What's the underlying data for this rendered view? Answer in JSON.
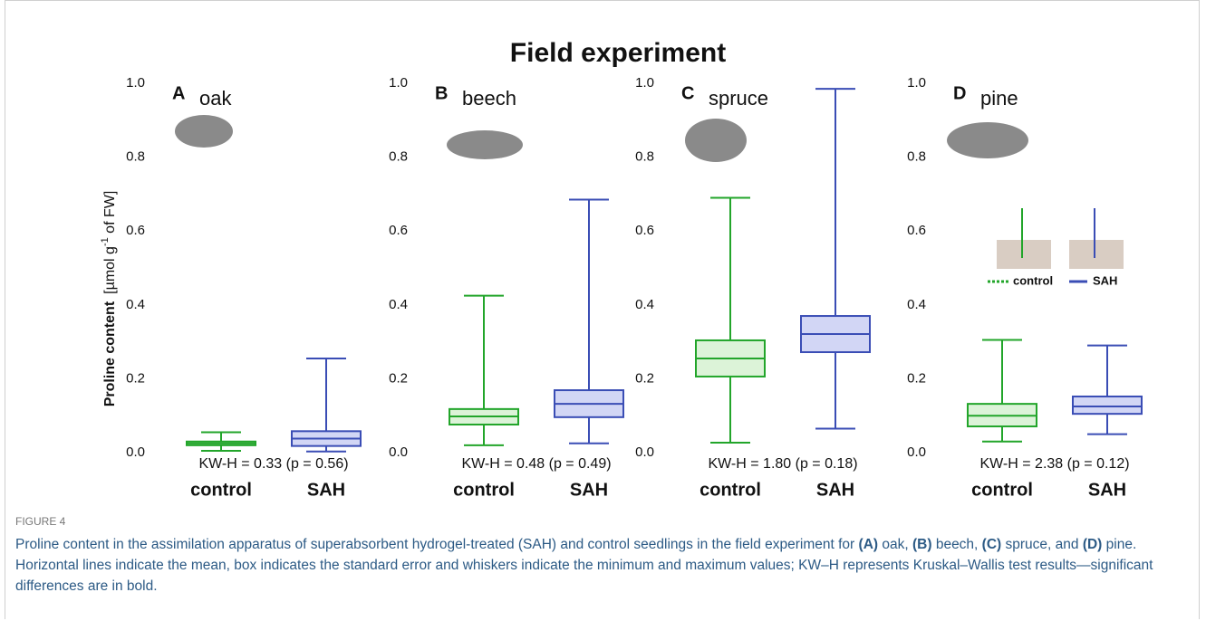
{
  "figure": {
    "title": "Field experiment",
    "ylabel": "Proline content",
    "ylabel_unit": "[µmol g",
    "ylabel_sup": "-1",
    "ylabel_end": " of FW]",
    "label": "FIGURE 4",
    "caption": [
      "Proline content in the assimilation apparatus of superabsorbent hydrogel-treated (SAH) and control seedlings in the field experiment for ",
      "(A)",
      " oak, ",
      "(B)",
      " beech, ",
      "(C)",
      " spruce, and ",
      "(D)",
      " pine. Horizontal lines indicate the mean, box indicates the standard error and whiskers indicate the minimum and maximum values; KW–H represents Kruskal–Wallis test results—significant differences are in bold."
    ]
  },
  "chart_data": [
    {
      "type": "box",
      "panel": "A",
      "label": "oak",
      "annotation": "KW-H = 0.33 (p = 0.56)",
      "categories": [
        "control",
        "SAH"
      ],
      "colors": [
        "#22a52a",
        "#3a4db5"
      ],
      "fills": [
        "#dcf3d8",
        "#d2d6f5"
      ],
      "min": [
        0.005,
        0.003
      ],
      "low": [
        0.02,
        0.018
      ],
      "mean": [
        0.025,
        0.038
      ],
      "high": [
        0.03,
        0.058
      ],
      "max": [
        0.055,
        0.255
      ],
      "ylim": [
        0,
        1
      ],
      "yticks": [
        {
          "value": 0,
          "label": "0.0"
        },
        0.2,
        0.4,
        0.6,
        0.8,
        {
          "value": 1,
          "label": "1.0"
        }
      ]
    },
    {
      "type": "box",
      "panel": "B",
      "label": "beech",
      "annotation": "KW-H = 0.48 (p = 0.49)",
      "categories": [
        "control",
        "SAH"
      ],
      "colors": [
        "#22a52a",
        "#3a4db5"
      ],
      "fills": [
        "#dcf3d8",
        "#d2d6f5"
      ],
      "min": [
        0.02,
        0.025
      ],
      "low": [
        0.076,
        0.096
      ],
      "mean": [
        0.098,
        0.132
      ],
      "high": [
        0.118,
        0.169
      ],
      "max": [
        0.425,
        0.685
      ],
      "ylim": [
        0,
        1
      ],
      "yticks": [
        {
          "value": 0,
          "label": "0.0"
        },
        0.2,
        0.4,
        0.6,
        0.8,
        {
          "value": 1,
          "label": "1.0"
        }
      ]
    },
    {
      "type": "box",
      "panel": "C",
      "label": "spruce",
      "annotation": "KW-H = 1.80 (p = 0.18)",
      "categories": [
        "control",
        "SAH"
      ],
      "colors": [
        "#22a52a",
        "#3a4db5"
      ],
      "fills": [
        "#dcf3d8",
        "#d2d6f5"
      ],
      "min": [
        0.027,
        0.065
      ],
      "low": [
        0.206,
        0.272
      ],
      "mean": [
        0.255,
        0.321
      ],
      "high": [
        0.304,
        0.37
      ],
      "max": [
        0.69,
        0.985
      ],
      "ylim": [
        0,
        1
      ],
      "yticks": [
        {
          "value": 0,
          "label": "0.0"
        },
        0.2,
        0.4,
        0.6,
        0.8,
        {
          "value": 1,
          "label": "1.0"
        }
      ]
    },
    {
      "type": "box",
      "panel": "D",
      "label": "pine",
      "annotation": "KW-H = 2.38 (p = 0.12)",
      "legend": true,
      "categories": [
        "control",
        "SAH"
      ],
      "colors": [
        "#22a52a",
        "#3a4db5"
      ],
      "fills": [
        "#dcf3d8",
        "#d2d6f5"
      ],
      "min": [
        0.03,
        0.05
      ],
      "low": [
        0.071,
        0.105
      ],
      "mean": [
        0.1,
        0.125
      ],
      "high": [
        0.132,
        0.152
      ],
      "max": [
        0.305,
        0.29
      ],
      "ylim": [
        0,
        1
      ],
      "yticks": [
        {
          "value": 0,
          "label": "0.0"
        },
        0.2,
        0.4,
        0.6,
        0.8,
        {
          "value": 1,
          "label": "1.0"
        }
      ]
    }
  ]
}
